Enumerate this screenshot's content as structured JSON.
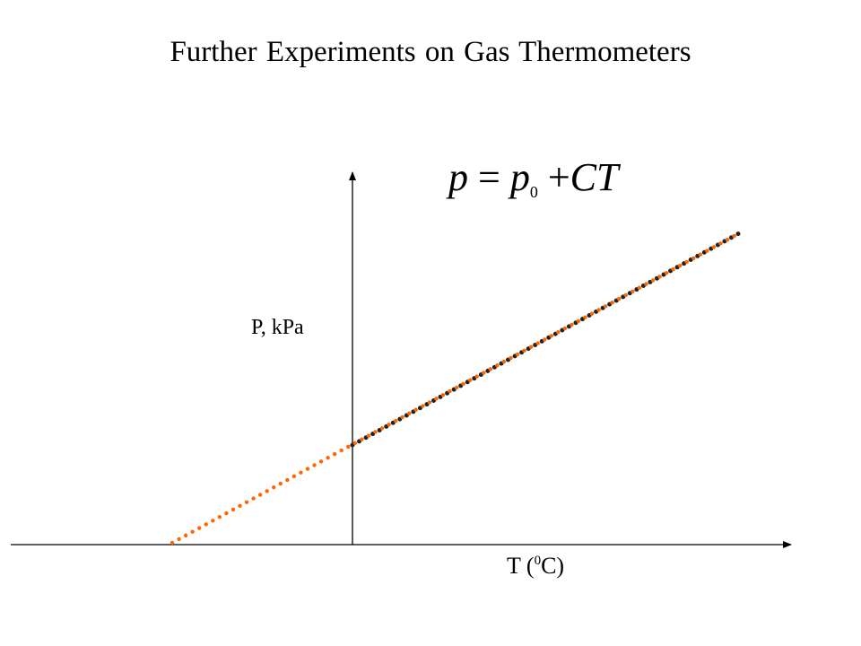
{
  "slide": {
    "title": "Further Experiments on Gas Thermometers"
  },
  "diagram": {
    "y_axis_label": "P, kPa",
    "x_axis_label_prefix": "T (",
    "x_axis_label_sup": "0",
    "x_axis_label_suffix": "C)",
    "equation": {
      "lhs": "p",
      "eq": "=",
      "p0_base": "p",
      "p0_sub": "0",
      "plus": "+",
      "rhs": "CT"
    },
    "colors": {
      "measured_line": "#222222",
      "extrapolated_line": "#ff6600",
      "axes": "#000000"
    }
  }
}
